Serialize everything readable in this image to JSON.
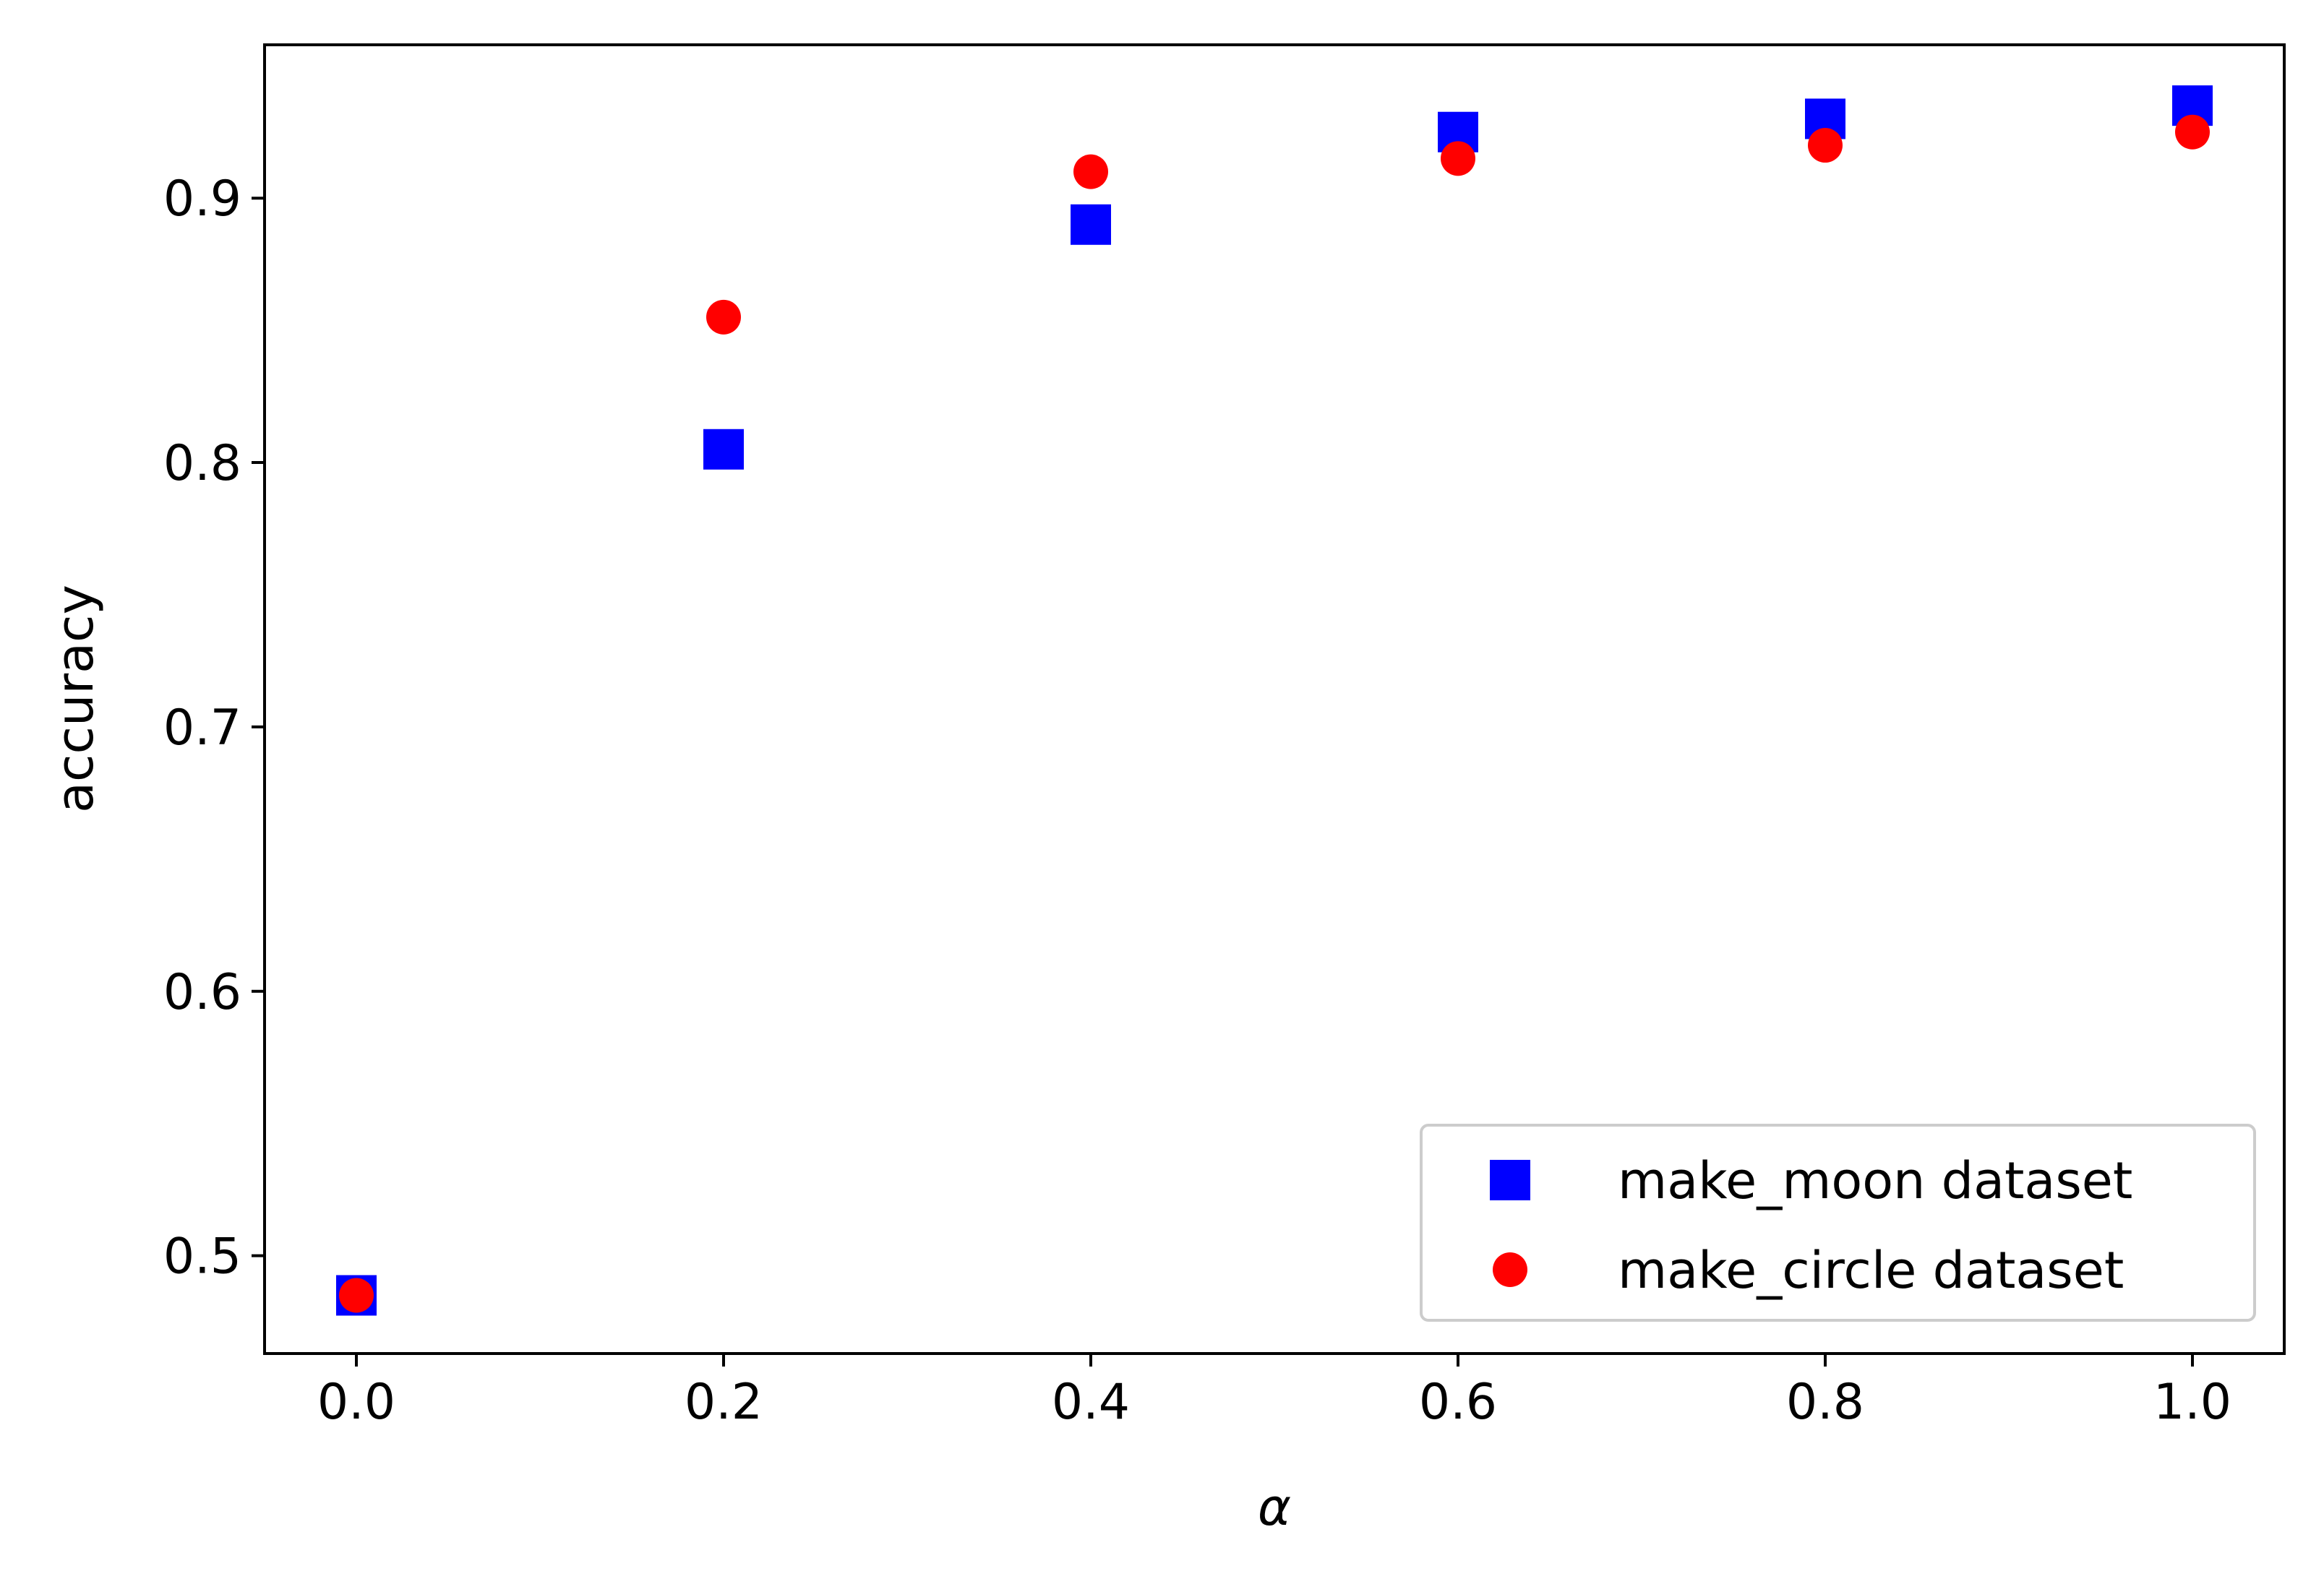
{
  "chart_data": {
    "type": "scatter",
    "title": "",
    "xlabel": "α",
    "ylabel": "accuracy",
    "xlim": [
      -0.05,
      1.05
    ],
    "ylim": [
      0.463,
      0.958
    ],
    "x_ticks": [
      0.0,
      0.2,
      0.4,
      0.6,
      0.8,
      1.0
    ],
    "x_tick_labels": [
      "0.0",
      "0.2",
      "0.4",
      "0.6",
      "0.8",
      "1.0"
    ],
    "y_ticks": [
      0.5,
      0.6,
      0.7,
      0.8,
      0.9
    ],
    "y_tick_labels": [
      "0.5",
      "0.6",
      "0.7",
      "0.8",
      "0.9"
    ],
    "grid": false,
    "legend_position": "lower right",
    "series": [
      {
        "name": "make_moon dataset",
        "marker": "square",
        "color": "#0000ff",
        "x": [
          0.0,
          0.2,
          0.4,
          0.6,
          0.8,
          1.0
        ],
        "y": [
          0.485,
          0.805,
          0.89,
          0.925,
          0.93,
          0.935
        ]
      },
      {
        "name": "make_circle dataset",
        "marker": "circle",
        "color": "#ff0000",
        "x": [
          0.0,
          0.2,
          0.4,
          0.6,
          0.8,
          1.0
        ],
        "y": [
          0.485,
          0.855,
          0.91,
          0.915,
          0.92,
          0.925
        ]
      }
    ]
  }
}
